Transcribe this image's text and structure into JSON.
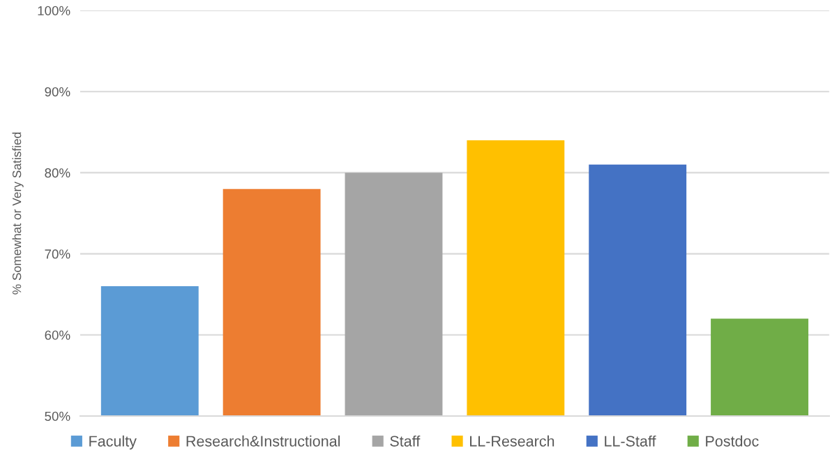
{
  "chart_data": {
    "type": "bar",
    "ylabel": "% Somewhat or Very Satisfied",
    "categories": [
      null
    ],
    "series": [
      {
        "name": "Faculty",
        "color": "#5b9bd5",
        "values": [
          66
        ]
      },
      {
        "name": "Research&Instructional",
        "color": "#ed7d31",
        "values": [
          78
        ]
      },
      {
        "name": "Staff",
        "color": "#a5a5a5",
        "values": [
          80
        ]
      },
      {
        "name": "LL-Research",
        "color": "#ffc000",
        "values": [
          84
        ]
      },
      {
        "name": "LL-Staff",
        "color": "#4472c4",
        "values": [
          81
        ]
      },
      {
        "name": "Postdoc",
        "color": "#70ad47",
        "values": [
          62
        ]
      }
    ],
    "ylim": [
      50,
      100
    ],
    "yticks": [
      {
        "value": 50,
        "label": "50%"
      },
      {
        "value": 60,
        "label": "60%"
      },
      {
        "value": 70,
        "label": "70%"
      },
      {
        "value": 80,
        "label": "80%"
      },
      {
        "value": 90,
        "label": "90%"
      },
      {
        "value": 100,
        "label": "100%"
      }
    ],
    "grid": "y",
    "legend": "bottom",
    "tick_labels": "y"
  }
}
